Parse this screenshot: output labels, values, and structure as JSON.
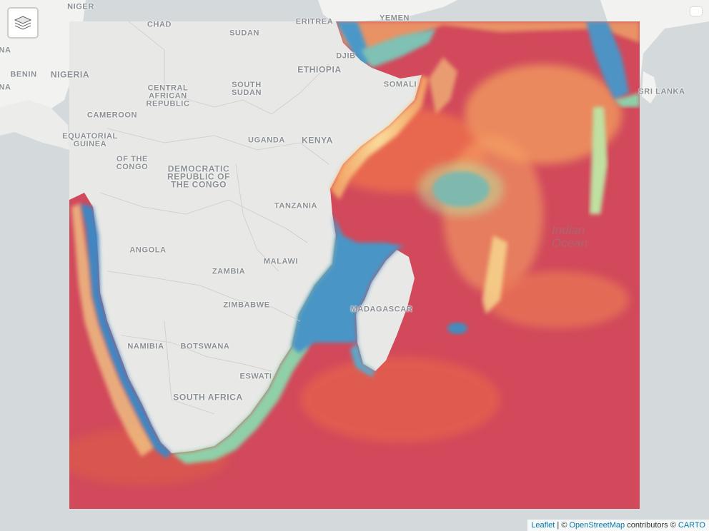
{
  "map": {
    "labels": [
      {
        "id": "niger",
        "text": "NIGER"
      },
      {
        "id": "chad",
        "text": "CHAD"
      },
      {
        "id": "sudan",
        "text": "SUDAN"
      },
      {
        "id": "eritrea",
        "text": "ERITREA"
      },
      {
        "id": "yemen",
        "text": "YEMEN"
      },
      {
        "id": "djibouti",
        "text": "DJIB"
      },
      {
        "id": "benin",
        "text": "BENIN"
      },
      {
        "id": "nigeria",
        "text": "NIGERIA"
      },
      {
        "id": "ethiopia",
        "text": "ETHIOPIA"
      },
      {
        "id": "somalia",
        "text": "SOMALI"
      },
      {
        "id": "sri-lanka",
        "text": "SRI LANKA"
      },
      {
        "id": "car",
        "text": "CENTRAL\nAFRICAN\nREPUBLIC"
      },
      {
        "id": "south-sudan",
        "text": "SOUTH\nSUDAN"
      },
      {
        "id": "cameroon",
        "text": "CAMEROON"
      },
      {
        "id": "eq-guinea",
        "text": "EQUATORIAL\nGUINEA"
      },
      {
        "id": "uganda",
        "text": "UGANDA"
      },
      {
        "id": "kenya",
        "text": "KENYA"
      },
      {
        "id": "rep-congo",
        "text": "OF THE\nCONGO"
      },
      {
        "id": "drc",
        "text": "DEMOCRATIC\nREPUBLIC OF\nTHE CONGO"
      },
      {
        "id": "tanzania",
        "text": "TANZANIA"
      },
      {
        "id": "angola",
        "text": "ANGOLA"
      },
      {
        "id": "malawi",
        "text": "MALAWI"
      },
      {
        "id": "zambia",
        "text": "ZAMBIA"
      },
      {
        "id": "madagascar",
        "text": "MADAGASCAR"
      },
      {
        "id": "zimbabwe",
        "text": "ZIMBABWE"
      },
      {
        "id": "namibia",
        "text": "NAMIBIA"
      },
      {
        "id": "botswana",
        "text": "BOTSWANA"
      },
      {
        "id": "eswatini",
        "text": "ESWATI"
      },
      {
        "id": "south-africa",
        "text": "SOUTH AFRICA"
      },
      {
        "id": "edge-na-1",
        "text": "NA"
      },
      {
        "id": "edge-na-2",
        "text": "NA"
      }
    ],
    "ocean_label": "Indian\nOcean",
    "raster_colors": {
      "high": "#d1495b",
      "mid": "#f7e39a",
      "low": "#3b86c4"
    }
  },
  "controls": {
    "layers_icon": "layers-icon"
  },
  "attribution": {
    "leaflet": "Leaflet",
    "separator": " | © ",
    "osm": "OpenStreetMap",
    "contributors": " contributors © ",
    "carto": "CARTO"
  }
}
